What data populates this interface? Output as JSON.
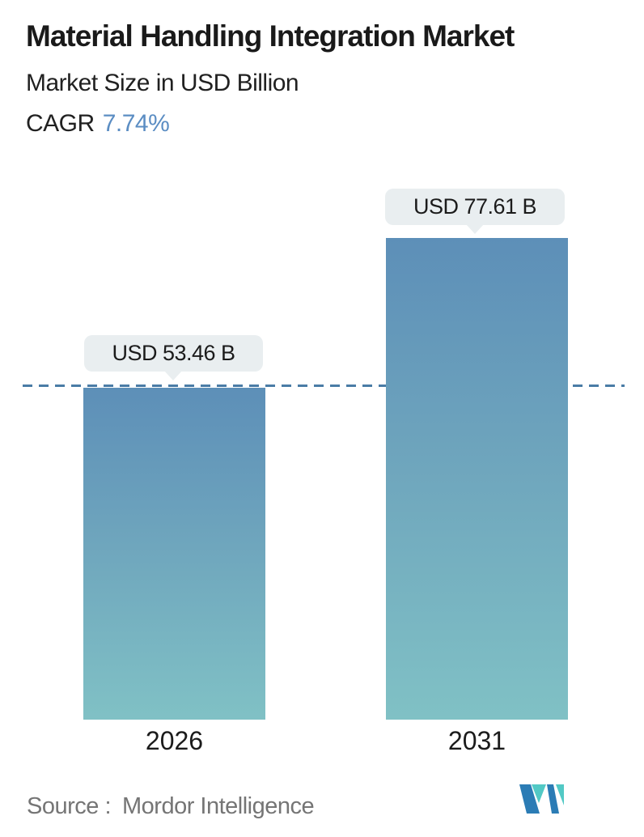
{
  "header": {
    "title": "Material Handling Integration Market",
    "subtitle": "Market Size in USD Billion",
    "cagr_label": "CAGR",
    "cagr_value": "7.74%"
  },
  "chart_data": {
    "type": "bar",
    "categories": [
      "2026",
      "2031"
    ],
    "values": [
      53.46,
      77.61
    ],
    "value_labels": [
      "USD 53.46 B",
      "USD 77.61 B"
    ],
    "title": "Material Handling Integration Market",
    "subtitle": "Market Size in USD Billion",
    "unit": "USD Billion",
    "cagr": "7.74%",
    "ylim": [
      0,
      90
    ],
    "grid": false,
    "legend": "none",
    "reference_line": {
      "style": "dashed",
      "at_value": 53.46,
      "color": "#4a7ca6"
    },
    "colors": {
      "bar_gradient_top": "#5d8fb8",
      "bar_gradient_bottom": "#80c1c5",
      "tooltip_background": "#e9eef0",
      "cagr_accent": "#5b8dc3",
      "text": "#1a1a1a",
      "source_text": "#757575",
      "logo_blue": "#2b7cb5",
      "logo_teal": "#52c9c5"
    }
  },
  "footer": {
    "source_label": "Source :",
    "source_value": "Mordor Intelligence",
    "logo_name": "mordor-intelligence-logo"
  }
}
